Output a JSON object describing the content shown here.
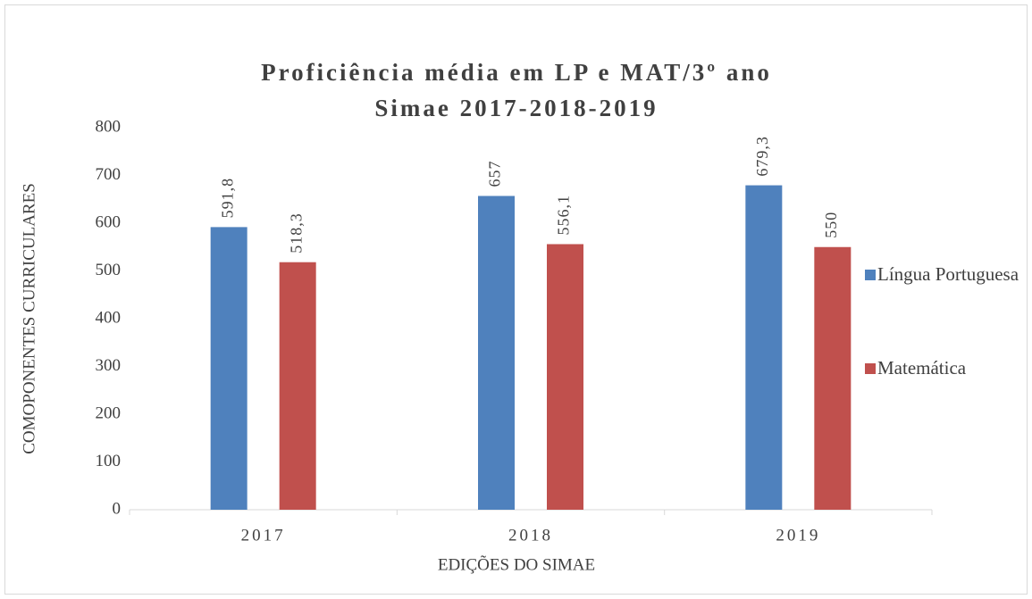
{
  "chart_data": {
    "type": "bar",
    "title": "Proficiência média em LP e MAT/3º ano",
    "subtitle": "Simae 2017-2018-2019",
    "x_label": "EDIÇÕES DO SIMAE",
    "y_label": "COMOPONENTES CURRICULARES",
    "categories": [
      "2017",
      "2018",
      "2019"
    ],
    "series": [
      {
        "name": "Língua Portuguesa",
        "color": "#4f81bd",
        "values": [
          591.8,
          657,
          679.3
        ],
        "value_labels": [
          "591,8",
          "657",
          "679,3"
        ]
      },
      {
        "name": "Matemática",
        "color": "#c0504d",
        "values": [
          518.3,
          556.1,
          550
        ],
        "value_labels": [
          "518,3",
          "556,1",
          "550"
        ]
      }
    ],
    "ylim": [
      0,
      800
    ],
    "yticks": [
      0,
      100,
      200,
      300,
      400,
      500,
      600,
      700,
      800
    ],
    "grid": false,
    "legend": "right"
  }
}
